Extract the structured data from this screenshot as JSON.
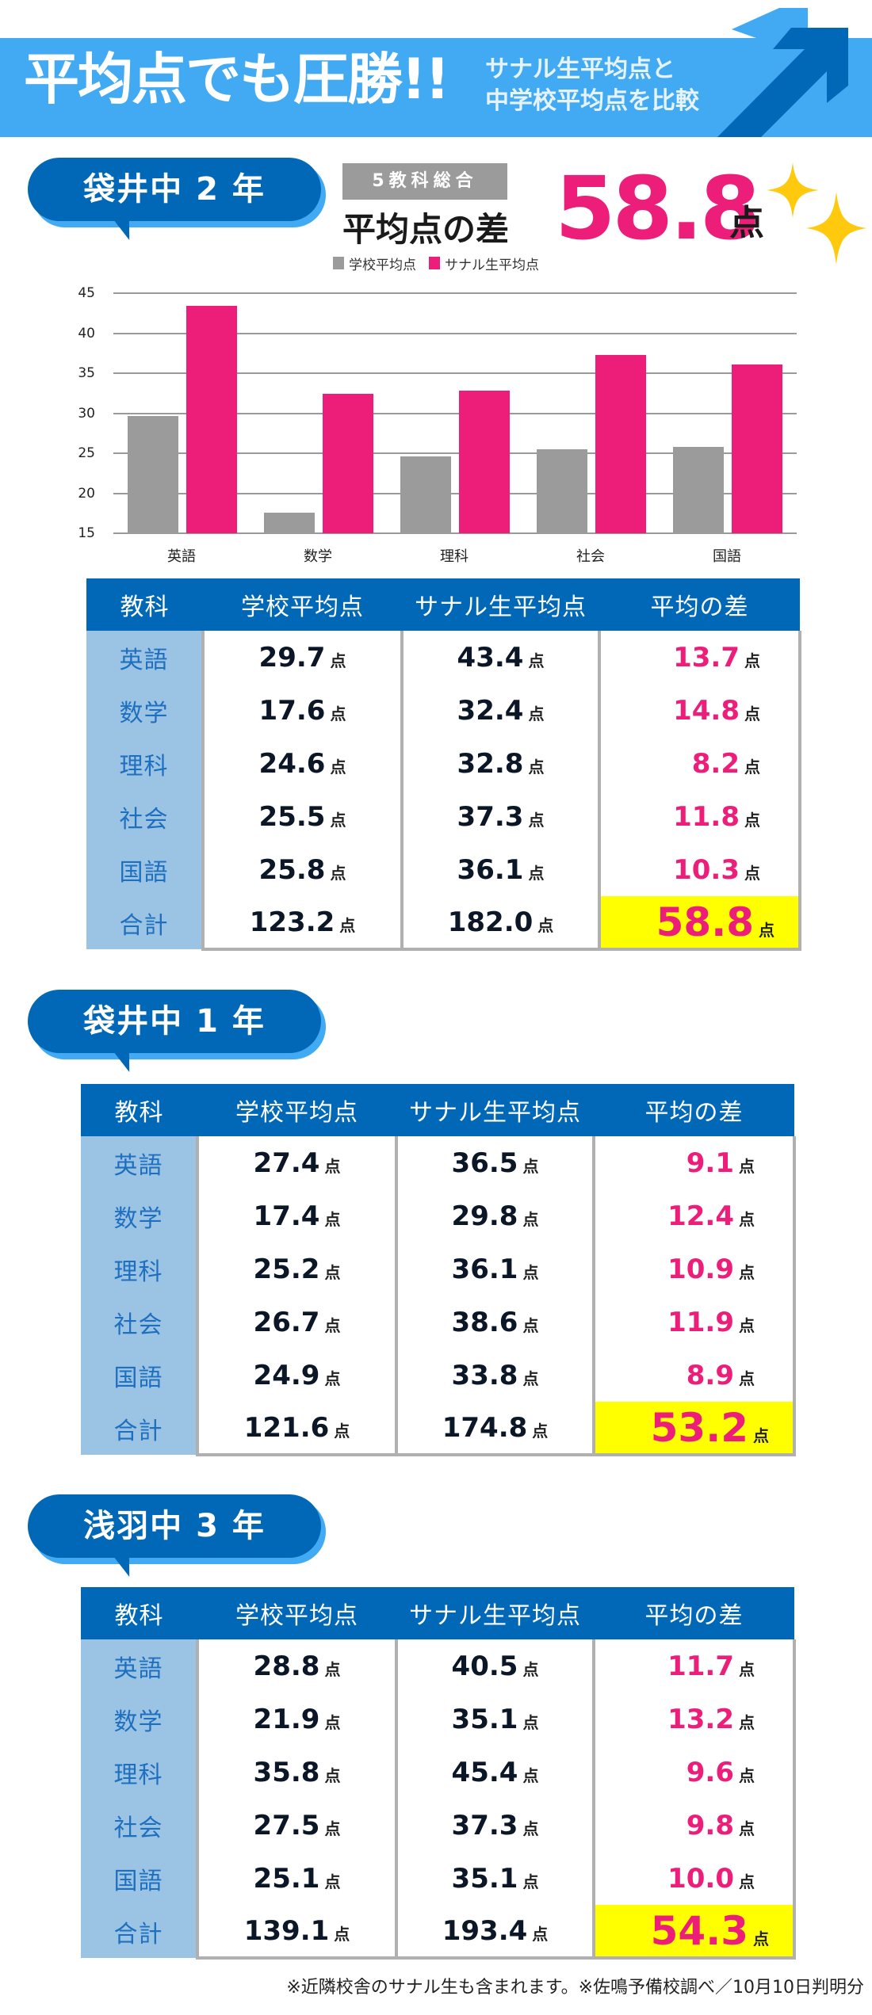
{
  "banner": {
    "title": "平均点でも圧勝!!",
    "subtitle_line1": "サナル生平均点と",
    "subtitle_line2": "中学校平均点を比較",
    "colors": {
      "banner": "#42A9F3",
      "arrow_dark": "#0068B7"
    },
    "icon": "up-right-arrow-icon"
  },
  "summary": {
    "tag": "5教科総合",
    "label": "平均点の差",
    "value": "58.8",
    "unit": "点",
    "icon": "sparkle-stars-icon"
  },
  "table_headers": [
    "教科",
    "学校平均点",
    "サナル生平均点",
    "平均の差"
  ],
  "unit": "点",
  "sections": [
    {
      "title": "袋井中 2 年",
      "rows": [
        {
          "subject": "英語",
          "school": "29.7",
          "sanaru": "43.4",
          "diff": "13.7"
        },
        {
          "subject": "数学",
          "school": "17.6",
          "sanaru": "32.4",
          "diff": "14.8"
        },
        {
          "subject": "理科",
          "school": "24.6",
          "sanaru": "32.8",
          "diff": "8.2"
        },
        {
          "subject": "社会",
          "school": "25.5",
          "sanaru": "37.3",
          "diff": "11.8"
        },
        {
          "subject": "国語",
          "school": "25.8",
          "sanaru": "36.1",
          "diff": "10.3"
        }
      ],
      "total": {
        "subject": "合計",
        "school": "123.2",
        "sanaru": "182.0",
        "diff": "58.8"
      }
    },
    {
      "title": "袋井中 1 年",
      "rows": [
        {
          "subject": "英語",
          "school": "27.4",
          "sanaru": "36.5",
          "diff": "9.1"
        },
        {
          "subject": "数学",
          "school": "17.4",
          "sanaru": "29.8",
          "diff": "12.4"
        },
        {
          "subject": "理科",
          "school": "25.2",
          "sanaru": "36.1",
          "diff": "10.9"
        },
        {
          "subject": "社会",
          "school": "26.7",
          "sanaru": "38.6",
          "diff": "11.9"
        },
        {
          "subject": "国語",
          "school": "24.9",
          "sanaru": "33.8",
          "diff": "8.9"
        }
      ],
      "total": {
        "subject": "合計",
        "school": "121.6",
        "sanaru": "174.8",
        "diff": "53.2"
      }
    },
    {
      "title": "浅羽中 3 年",
      "rows": [
        {
          "subject": "英語",
          "school": "28.8",
          "sanaru": "40.5",
          "diff": "11.7"
        },
        {
          "subject": "数学",
          "school": "21.9",
          "sanaru": "35.1",
          "diff": "13.2"
        },
        {
          "subject": "理科",
          "school": "35.8",
          "sanaru": "45.4",
          "diff": "9.6"
        },
        {
          "subject": "社会",
          "school": "27.5",
          "sanaru": "37.3",
          "diff": "9.8"
        },
        {
          "subject": "国語",
          "school": "25.1",
          "sanaru": "35.1",
          "diff": "10.0"
        }
      ],
      "total": {
        "subject": "合計",
        "school": "139.1",
        "sanaru": "193.4",
        "diff": "54.3"
      }
    }
  ],
  "footnote": "※近隣校舎のサナル生も含まれます。※佐鳴予備校調べ／10月10日判明分",
  "colors": {
    "header_blue": "#0068B7",
    "subject_bg": "#9BC3E4",
    "subject_text": "#1F6FBF",
    "diff_pink": "#EC1E79",
    "total_yellow": "#FFFF00",
    "school_gray": "#9B9B9B",
    "star_gold": "#FFC90E"
  },
  "chart_data": {
    "type": "bar",
    "title": "",
    "categories": [
      "英語",
      "数学",
      "理科",
      "社会",
      "国語"
    ],
    "series": [
      {
        "name": "学校平均点",
        "color": "#9B9B9B",
        "values": [
          29.7,
          17.6,
          24.6,
          25.5,
          25.8
        ]
      },
      {
        "name": "サナル生平均点",
        "color": "#EC1E79",
        "values": [
          43.4,
          32.4,
          32.8,
          37.3,
          36.1
        ]
      }
    ],
    "xlabel": "",
    "ylabel": "",
    "ylim": [
      15,
      45
    ],
    "yticks": [
      15,
      20,
      25,
      30,
      35,
      40,
      45
    ],
    "grid": true,
    "legend_position": "top"
  }
}
